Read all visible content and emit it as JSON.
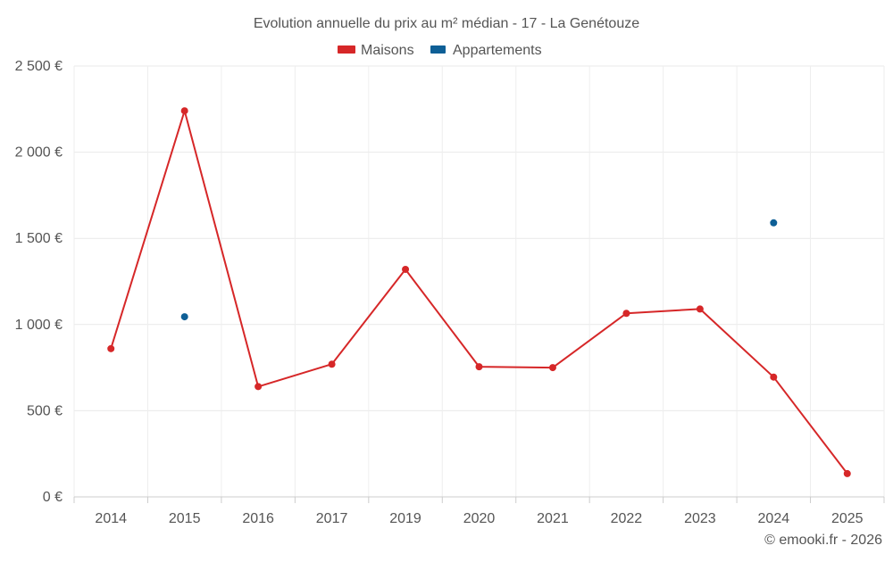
{
  "chart_data": {
    "type": "line",
    "title": "Evolution annuelle du prix au m² médian - 17 - La Genétouze",
    "categories": [
      "2014",
      "2015",
      "2016",
      "2017",
      "2019",
      "2020",
      "2021",
      "2022",
      "2023",
      "2024",
      "2025"
    ],
    "y_ticks": [
      "0 €",
      "500 €",
      "1 000 €",
      "1 500 €",
      "2 000 €",
      "2 500 €"
    ],
    "ylim": [
      0,
      2500
    ],
    "grid": true,
    "legend_position": "top-center",
    "series": [
      {
        "name": "Maisons",
        "color": "#d62728",
        "values": [
          860,
          2240,
          640,
          770,
          1320,
          755,
          750,
          1065,
          1090,
          695,
          135
        ]
      },
      {
        "name": "Appartements",
        "color": "#0e5f96",
        "values": [
          null,
          1045,
          null,
          null,
          null,
          null,
          null,
          null,
          null,
          1590,
          null
        ]
      }
    ],
    "credit": "© emooki.fr - 2026"
  }
}
